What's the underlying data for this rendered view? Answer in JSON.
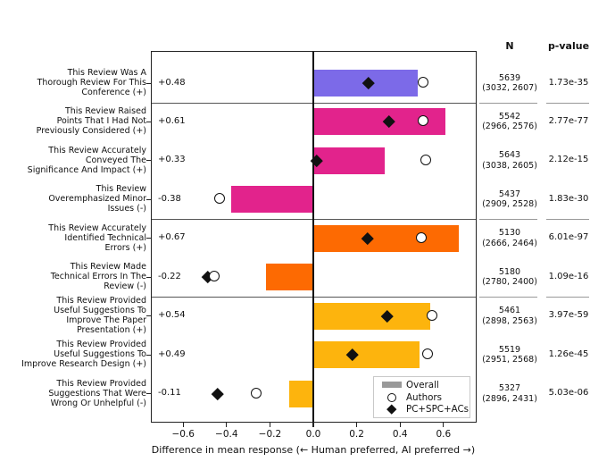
{
  "chart_data": {
    "type": "bar",
    "orientation": "horizontal",
    "title": "",
    "xlabel": "Difference in mean response (← Human preferred,   AI preferred →)",
    "ylabel": "",
    "xlim": [
      -0.75,
      0.75
    ],
    "grid": false,
    "xticks": [
      "−0.6",
      "−0.4",
      "−0.2",
      "0.0",
      "0.2",
      "0.4",
      "0.6"
    ],
    "xtick_values": [
      -0.6,
      -0.4,
      -0.2,
      0.0,
      0.2,
      0.4,
      0.6
    ],
    "columns": {
      "n": "N",
      "p_value": "p-value"
    },
    "legend": {
      "position": "lower right inside plot",
      "entries": [
        {
          "label": "Overall",
          "marker": "gray-bar-swatch"
        },
        {
          "label": "Authors",
          "marker": "open-circle"
        },
        {
          "label": "PC+SPC+ACs",
          "marker": "black-diamond"
        }
      ]
    },
    "colors": {
      "purple": "#7C6AE8",
      "pink": "#E2238C",
      "orange": "#FD6A02",
      "amber": "#FDB40D",
      "overall_legend_swatch": "#999999"
    },
    "rows": [
      {
        "label": "This Review Was A Thorough Review For This Conference (+)",
        "label_lines": [
          "This Review Was A",
          "Thorough Review For This",
          "Conference (+)"
        ],
        "annotation": "+0.48",
        "overall": 0.48,
        "authors": 0.51,
        "pc_spc_acs": 0.255,
        "color_key": "purple",
        "group": 0,
        "n": "5639",
        "n_detail": "(3032, 2607)",
        "p_value": "1.73e-35"
      },
      {
        "label": "This Review Raised Points That I Had Not Previously Considered (+)",
        "label_lines": [
          "This Review Raised",
          "Points That I Had Not",
          "Previously Considered (+)"
        ],
        "annotation": "+0.61",
        "overall": 0.61,
        "authors": 0.51,
        "pc_spc_acs": 0.35,
        "color_key": "pink",
        "group": 1,
        "n": "5542",
        "n_detail": "(2966, 2576)",
        "p_value": "2.77e-77"
      },
      {
        "label": "This Review Accurately Conveyed The Significance And Impact (+)",
        "label_lines": [
          "This Review Accurately",
          "Conveyed The",
          "Significance And Impact (+)"
        ],
        "annotation": "+0.33",
        "overall": 0.33,
        "authors": 0.52,
        "pc_spc_acs": 0.015,
        "color_key": "pink",
        "group": 1,
        "n": "5643",
        "n_detail": "(3038, 2605)",
        "p_value": "2.12e-15"
      },
      {
        "label": "This Review Overemphasized Minor Issues (-)",
        "label_lines": [
          "This Review",
          "Overemphasized Minor",
          "Issues (-)"
        ],
        "annotation": "-0.38",
        "overall": -0.38,
        "authors": -0.43,
        "pc_spc_acs": null,
        "color_key": "pink",
        "group": 1,
        "n": "5437",
        "n_detail": "(2909, 2528)",
        "p_value": "1.83e-30"
      },
      {
        "label": "This Review Accurately Identified Technical Errors (+)",
        "label_lines": [
          "This Review Accurately",
          "Identified Technical",
          "Errors (+)"
        ],
        "annotation": "+0.67",
        "overall": 0.67,
        "authors": 0.5,
        "pc_spc_acs": 0.25,
        "color_key": "orange",
        "group": 2,
        "n": "5130",
        "n_detail": "(2666, 2464)",
        "p_value": "6.01e-97"
      },
      {
        "label": "This Review Made Technical Errors In The Review (-)",
        "label_lines": [
          "This Review Made",
          "Technical Errors In The",
          "Review (-)"
        ],
        "annotation": "-0.22",
        "overall": -0.22,
        "authors": -0.455,
        "pc_spc_acs": -0.485,
        "color_key": "orange",
        "group": 2,
        "n": "5180",
        "n_detail": "(2780, 2400)",
        "p_value": "1.09e-16"
      },
      {
        "label": "This Review Provided Useful Suggestions To Improve The Paper Presentation (+)",
        "label_lines": [
          "This Review Provided",
          "Useful Suggestions To",
          "Improve The Paper",
          "Presentation (+)"
        ],
        "annotation": "+0.54",
        "overall": 0.54,
        "authors": 0.55,
        "pc_spc_acs": 0.34,
        "color_key": "amber",
        "group": 3,
        "n": "5461",
        "n_detail": "(2898, 2563)",
        "p_value": "3.97e-59"
      },
      {
        "label": "This Review Provided Useful Suggestions To Improve Research Design (+)",
        "label_lines": [
          "This Review Provided",
          "Useful Suggestions To",
          "Improve Research Design (+)"
        ],
        "annotation": "+0.49",
        "overall": 0.49,
        "authors": 0.53,
        "pc_spc_acs": 0.18,
        "color_key": "amber",
        "group": 3,
        "n": "5519",
        "n_detail": "(2951, 2568)",
        "p_value": "1.26e-45"
      },
      {
        "label": "This Review Provided Suggestions That Were Wrong Or Unhelpful (-)",
        "label_lines": [
          "This Review Provided",
          "Suggestions That Were",
          "Wrong Or Unhelpful (-)"
        ],
        "annotation": "-0.11",
        "overall": -0.11,
        "authors": -0.26,
        "pc_spc_acs": -0.44,
        "color_key": "amber",
        "group": 3,
        "n": "5327",
        "n_detail": "(2896, 2431)",
        "p_value": "5.03e-06"
      }
    ]
  }
}
